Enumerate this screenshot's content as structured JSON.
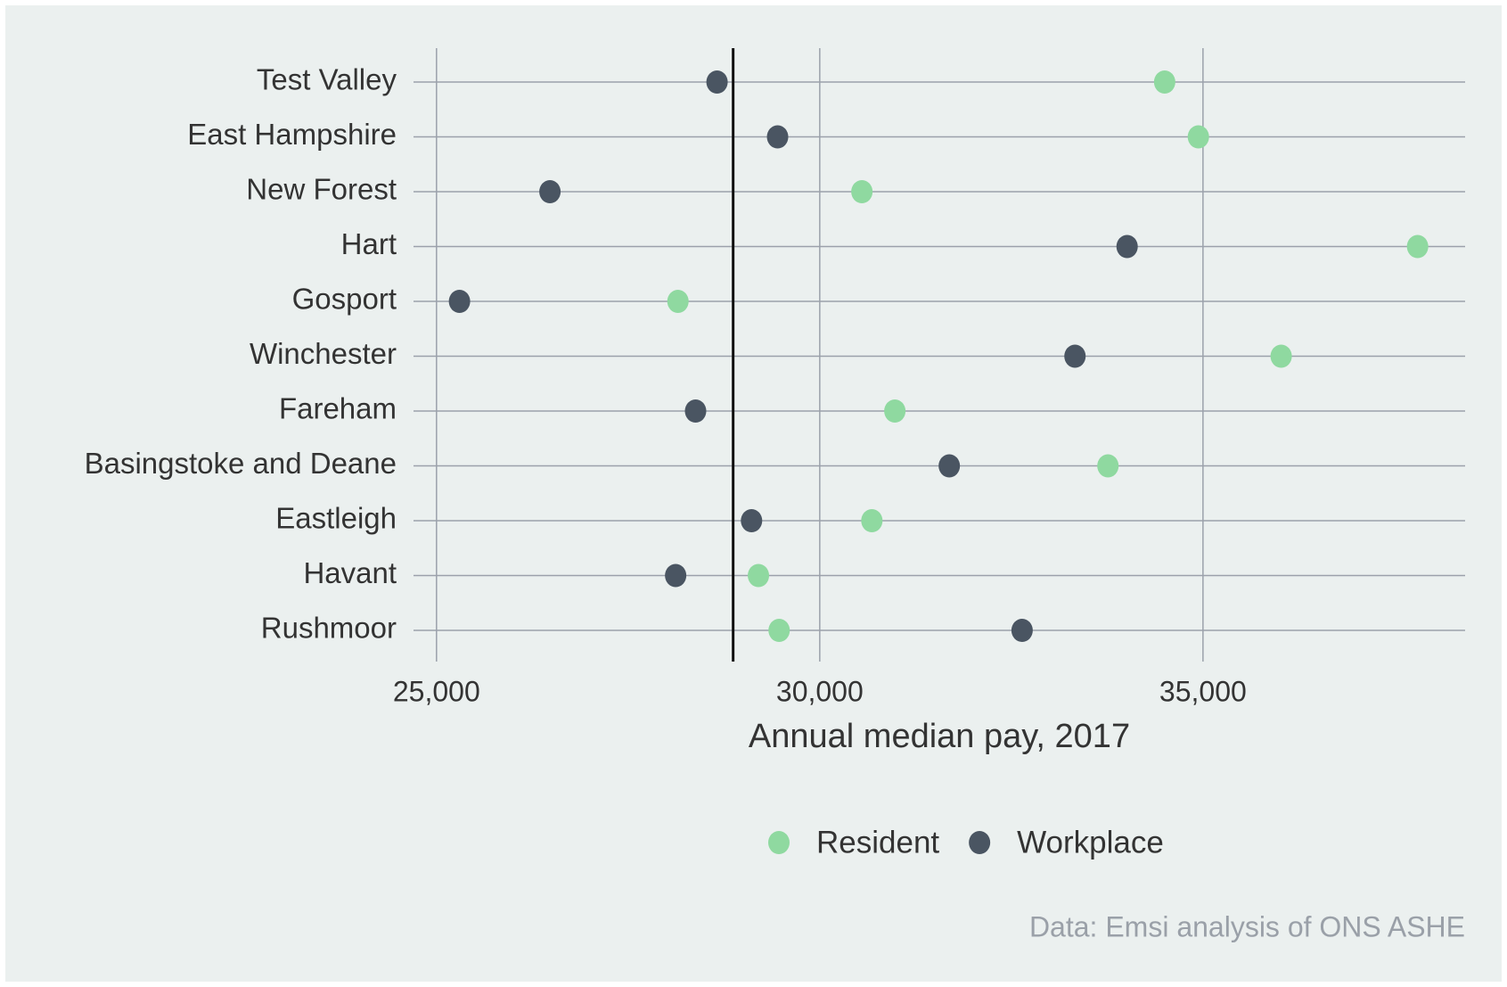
{
  "chart_data": {
    "type": "dot",
    "x_label": "Annual median pay, 2017",
    "source": "Data: Emsi analysis of ONS ASHE",
    "categories": [
      "Test Valley",
      "East Hampshire",
      "New Forest",
      "Hart",
      "Gosport",
      "Winchester",
      "Fareham",
      "Basingstoke and Deane",
      "Eastleigh",
      "Havant",
      "Rushmoor"
    ],
    "series": [
      {
        "name": "Resident",
        "color": "#8fd9a0",
        "values": [
          34500,
          34940,
          30550,
          37800,
          28150,
          36020,
          30980,
          33760,
          30680,
          29200,
          29470
        ]
      },
      {
        "name": "Workplace",
        "color": "#4a5562",
        "values": [
          28660,
          29450,
          26480,
          34010,
          25300,
          33330,
          28380,
          31690,
          29110,
          28120,
          32640
        ]
      }
    ],
    "reference_line": 28870,
    "xlim": [
      24700,
      38420
    ],
    "xticks": [
      {
        "value": 25000,
        "label": "25,000"
      },
      {
        "value": 30000,
        "label": "30,000"
      },
      {
        "value": 35000,
        "label": "35,000"
      }
    ],
    "grid": true,
    "legend": "bottom"
  }
}
